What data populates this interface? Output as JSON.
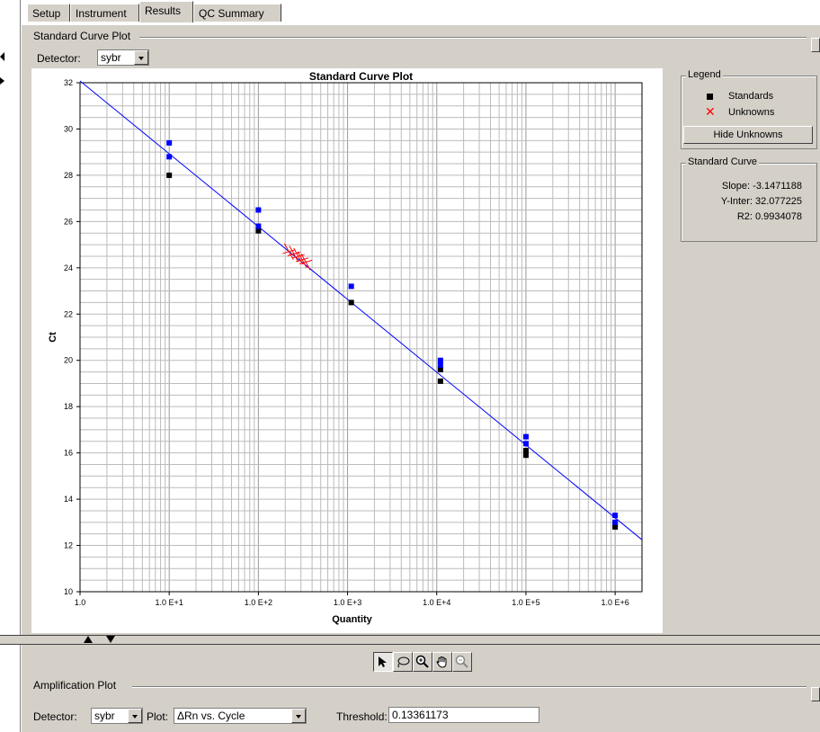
{
  "tabs": [
    {
      "label": "Setup"
    },
    {
      "label": "Instrument"
    },
    {
      "label": "Results"
    },
    {
      "label": "QC Summary"
    }
  ],
  "standard_curve_group": {
    "title": "Standard Curve Plot",
    "detector_label": "Detector:",
    "detector_value": "sybr"
  },
  "legend": {
    "title": "Legend",
    "standards_label": "Standards",
    "unknowns_label": "Unknowns",
    "hide_unknowns_button": "Hide Unknowns"
  },
  "standard_curve": {
    "title": "Standard Curve",
    "slope": "Slope: -3.1471188",
    "y_intercept": "Y-Inter: 32.077225",
    "r2": "R2: 0.9934078"
  },
  "amplification_group": {
    "title": "Amplification Plot",
    "detector_label": "Detector:",
    "detector_value": "sybr",
    "plot_label": "Plot:",
    "plot_value": "ΔRn vs. Cycle",
    "threshold_label": "Threshold:",
    "threshold_value": "0.13361173"
  },
  "toolbar": {
    "tools": [
      "select-arrow-icon",
      "lasso-icon",
      "zoom-in-icon",
      "pan-hand-icon",
      "zoom-out-icon"
    ]
  },
  "colors": {
    "accent_blue": "#0000ff",
    "standards": "#000000",
    "unknowns": "#ff0000",
    "panel": "#d4d0c8"
  },
  "chart_data": {
    "type": "scatter",
    "title": "Standard Curve Plot",
    "xlabel": "Quantity",
    "ylabel": "Ct",
    "x_scale": "log10",
    "xlim": [
      1,
      2000000
    ],
    "ylim": [
      10,
      32
    ],
    "x_ticks": [
      1,
      10,
      100,
      1000,
      10000,
      100000,
      1000000
    ],
    "x_tick_labels": [
      "1.0",
      "1.0 E+1",
      "1.0 E+2",
      "1.0 E+3",
      "1.0 E+4",
      "1.0 E+5",
      "1.0 E+6"
    ],
    "y_ticks": [
      10,
      12,
      14,
      16,
      18,
      20,
      22,
      24,
      26,
      28,
      30,
      32
    ],
    "y_tick_labels": [
      "10",
      "12",
      "14",
      "16",
      "18",
      "20",
      "22",
      "24",
      "26",
      "28",
      "30",
      "32"
    ],
    "grid": true,
    "fit_line": {
      "slope": -3.1471188,
      "intercept": 32.077225
    },
    "series": [
      {
        "name": "Standards",
        "marker": "square",
        "color": "#000000",
        "points": [
          [
            10,
            28.0
          ],
          [
            100,
            25.6
          ],
          [
            1100,
            22.5
          ],
          [
            11000,
            19.6
          ],
          [
            11000,
            19.1
          ],
          [
            100000,
            16.1
          ],
          [
            100000,
            15.9
          ],
          [
            1000000,
            12.9
          ],
          [
            1000000,
            12.8
          ]
        ]
      },
      {
        "name": "Standards (blue)",
        "marker": "square",
        "color": "#0000ff",
        "points": [
          [
            10,
            29.4
          ],
          [
            10,
            28.8
          ],
          [
            100,
            26.5
          ],
          [
            100,
            25.8
          ],
          [
            1100,
            23.2
          ],
          [
            11000,
            20.0
          ],
          [
            11000,
            19.8
          ],
          [
            100000,
            16.7
          ],
          [
            100000,
            16.4
          ],
          [
            1000000,
            13.3
          ],
          [
            1000000,
            13.0
          ]
        ]
      },
      {
        "name": "Unknowns",
        "marker": "x",
        "color": "#ff0000",
        "points": [
          [
            220,
            24.7
          ],
          [
            250,
            24.6
          ],
          [
            280,
            24.5
          ],
          [
            310,
            24.35
          ],
          [
            340,
            24.25
          ]
        ]
      }
    ]
  }
}
